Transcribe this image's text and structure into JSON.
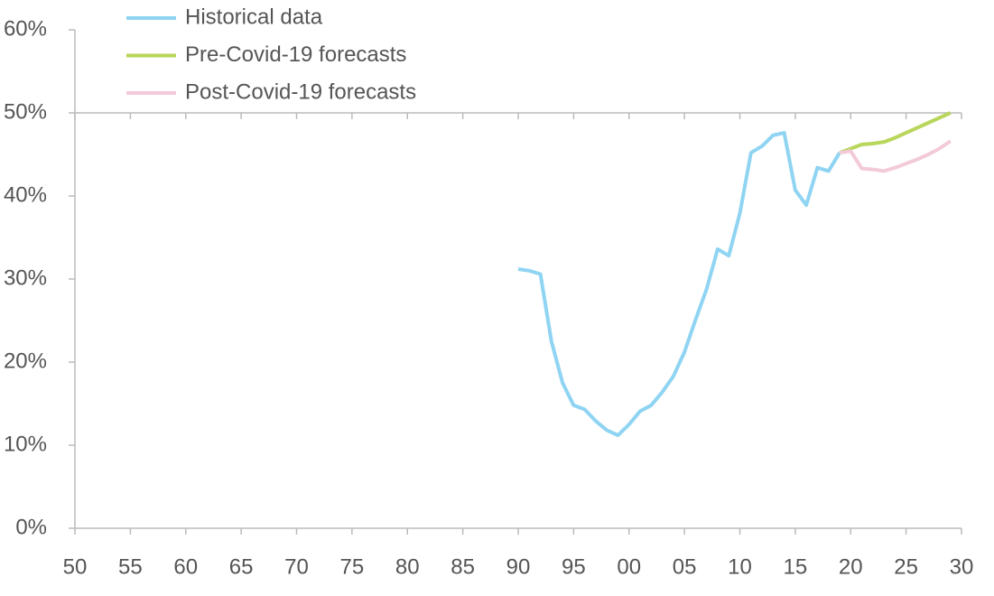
{
  "chart_data": {
    "type": "line",
    "x": [
      1990,
      1991,
      1992,
      1993,
      1994,
      1995,
      1996,
      1997,
      1998,
      1999,
      2000,
      2001,
      2002,
      2003,
      2004,
      2005,
      2006,
      2007,
      2008,
      2009,
      2010,
      2011,
      2012,
      2013,
      2014,
      2015,
      2016,
      2017,
      2018,
      2019,
      2020,
      2021,
      2022,
      2023,
      2024,
      2025,
      2026,
      2027,
      2028,
      2029
    ],
    "series": [
      {
        "name": "Historical data",
        "color": "#8fd4f2",
        "values": [
          31.2,
          31.0,
          30.6,
          22.5,
          17.5,
          14.8,
          14.3,
          12.9,
          11.8,
          11.2,
          12.5,
          14.1,
          14.8,
          16.4,
          18.3,
          21.2,
          25.1,
          28.8,
          33.6,
          32.8,
          37.9,
          45.2,
          46.0,
          47.3,
          47.6,
          40.7,
          38.9,
          43.4,
          43.0,
          45.2,
          null,
          null,
          null,
          null,
          null,
          null,
          null,
          null,
          null,
          null
        ]
      },
      {
        "name": "Pre-Covid-19 forecasts",
        "color": "#b8d65a",
        "values": [
          null,
          null,
          null,
          null,
          null,
          null,
          null,
          null,
          null,
          null,
          null,
          null,
          null,
          null,
          null,
          null,
          null,
          null,
          null,
          null,
          null,
          null,
          null,
          null,
          null,
          null,
          null,
          null,
          null,
          45.2,
          45.7,
          46.2,
          46.3,
          46.5,
          47.0,
          47.6,
          48.2,
          48.8,
          49.4,
          50.0
        ]
      },
      {
        "name": "Post-Covid-19 forecasts",
        "color": "#f2cad9",
        "values": [
          null,
          null,
          null,
          null,
          null,
          null,
          null,
          null,
          null,
          null,
          null,
          null,
          null,
          null,
          null,
          null,
          null,
          null,
          null,
          null,
          null,
          null,
          null,
          null,
          null,
          null,
          null,
          null,
          null,
          45.2,
          45.4,
          43.3,
          43.2,
          43.0,
          43.4,
          43.9,
          44.4,
          45.0,
          45.7,
          46.6
        ]
      }
    ],
    "xlim": [
      1950,
      2030
    ],
    "xticks": [
      {
        "value": 1950,
        "label": "50"
      },
      {
        "value": 1955,
        "label": "55"
      },
      {
        "value": 1960,
        "label": "60"
      },
      {
        "value": 1965,
        "label": "65"
      },
      {
        "value": 1970,
        "label": "70"
      },
      {
        "value": 1975,
        "label": "75"
      },
      {
        "value": 1980,
        "label": "80"
      },
      {
        "value": 1985,
        "label": "85"
      },
      {
        "value": 1990,
        "label": "90"
      },
      {
        "value": 1995,
        "label": "95"
      },
      {
        "value": 2000,
        "label": "00"
      },
      {
        "value": 2005,
        "label": "05"
      },
      {
        "value": 2010,
        "label": "10"
      },
      {
        "value": 2015,
        "label": "15"
      },
      {
        "value": 2020,
        "label": "20"
      },
      {
        "value": 2025,
        "label": "25"
      },
      {
        "value": 2030,
        "label": "30"
      }
    ],
    "ylim": [
      0,
      60
    ],
    "yticks": [
      {
        "value": 0,
        "label": "0%"
      },
      {
        "value": 10,
        "label": "10%"
      },
      {
        "value": 20,
        "label": "20%"
      },
      {
        "value": 30,
        "label": "30%"
      },
      {
        "value": 40,
        "label": "40%"
      },
      {
        "value": 50,
        "label": "50%"
      },
      {
        "value": 60,
        "label": "60%"
      }
    ],
    "grid": false,
    "legend": "top-left"
  }
}
